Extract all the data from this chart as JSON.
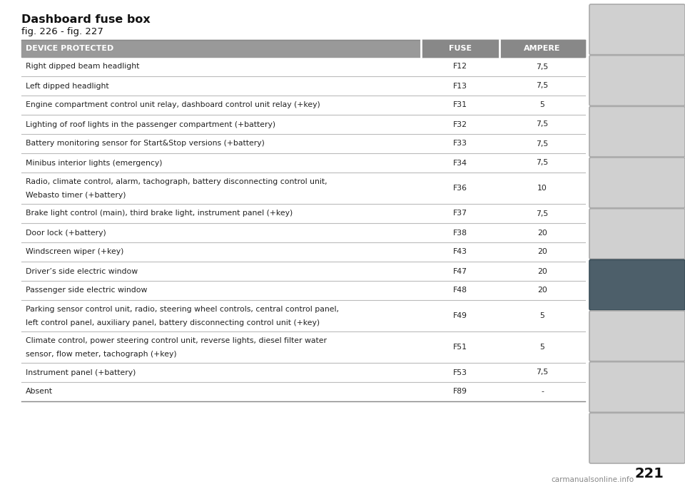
{
  "title": "Dashboard fuse box",
  "subtitle": "fig. 226 - fig. 227",
  "header": [
    "DEVICE PROTECTED",
    "FUSE",
    "AMPERE"
  ],
  "rows": [
    [
      "Right dipped beam headlight",
      "F12",
      "7,5"
    ],
    [
      "Left dipped headlight",
      "F13",
      "7,5"
    ],
    [
      "Engine compartment control unit relay, dashboard control unit relay (+key)",
      "F31",
      "5"
    ],
    [
      "Lighting of roof lights in the passenger compartment (+battery)",
      "F32",
      "7,5"
    ],
    [
      "Battery monitoring sensor for Start&Stop versions (+battery)",
      "F33",
      "7,5"
    ],
    [
      "Minibus interior lights (emergency)",
      "F34",
      "7,5"
    ],
    [
      "Radio, climate control, alarm, tachograph, battery disconnecting control unit,\nWebasto timer (+battery)",
      "F36",
      "10"
    ],
    [
      "Brake light control (main), third brake light, instrument panel (+key)",
      "F37",
      "7,5"
    ],
    [
      "Door lock (+battery)",
      "F38",
      "20"
    ],
    [
      "Windscreen wiper (+key)",
      "F43",
      "20"
    ],
    [
      "Driver’s side electric window",
      "F47",
      "20"
    ],
    [
      "Passenger side electric window",
      "F48",
      "20"
    ],
    [
      "Parking sensor control unit, radio, steering wheel controls, central control panel,\nleft control panel, auxiliary panel, battery disconnecting control unit (+key)",
      "F49",
      "5"
    ],
    [
      "Climate control, power steering control unit, reverse lights, diesel filter water\nsensor, flow meter, tachograph (+key)",
      "F51",
      "5"
    ],
    [
      "Instrument panel (+battery)",
      "F53",
      "7,5"
    ],
    [
      "Absent",
      "F89",
      "-"
    ]
  ],
  "header_bg": "#999999",
  "header_fg": "#ffffff",
  "line_color": "#bbbbbb",
  "page_bg": "#ffffff",
  "page_number": "221",
  "watermark": "carmanualsonline.info",
  "sidebar_icon_bg": "#d0d0d0",
  "sidebar_highlight_bg": "#4d5f6a",
  "sidebar_highlight_idx": 5,
  "num_icons": 9
}
